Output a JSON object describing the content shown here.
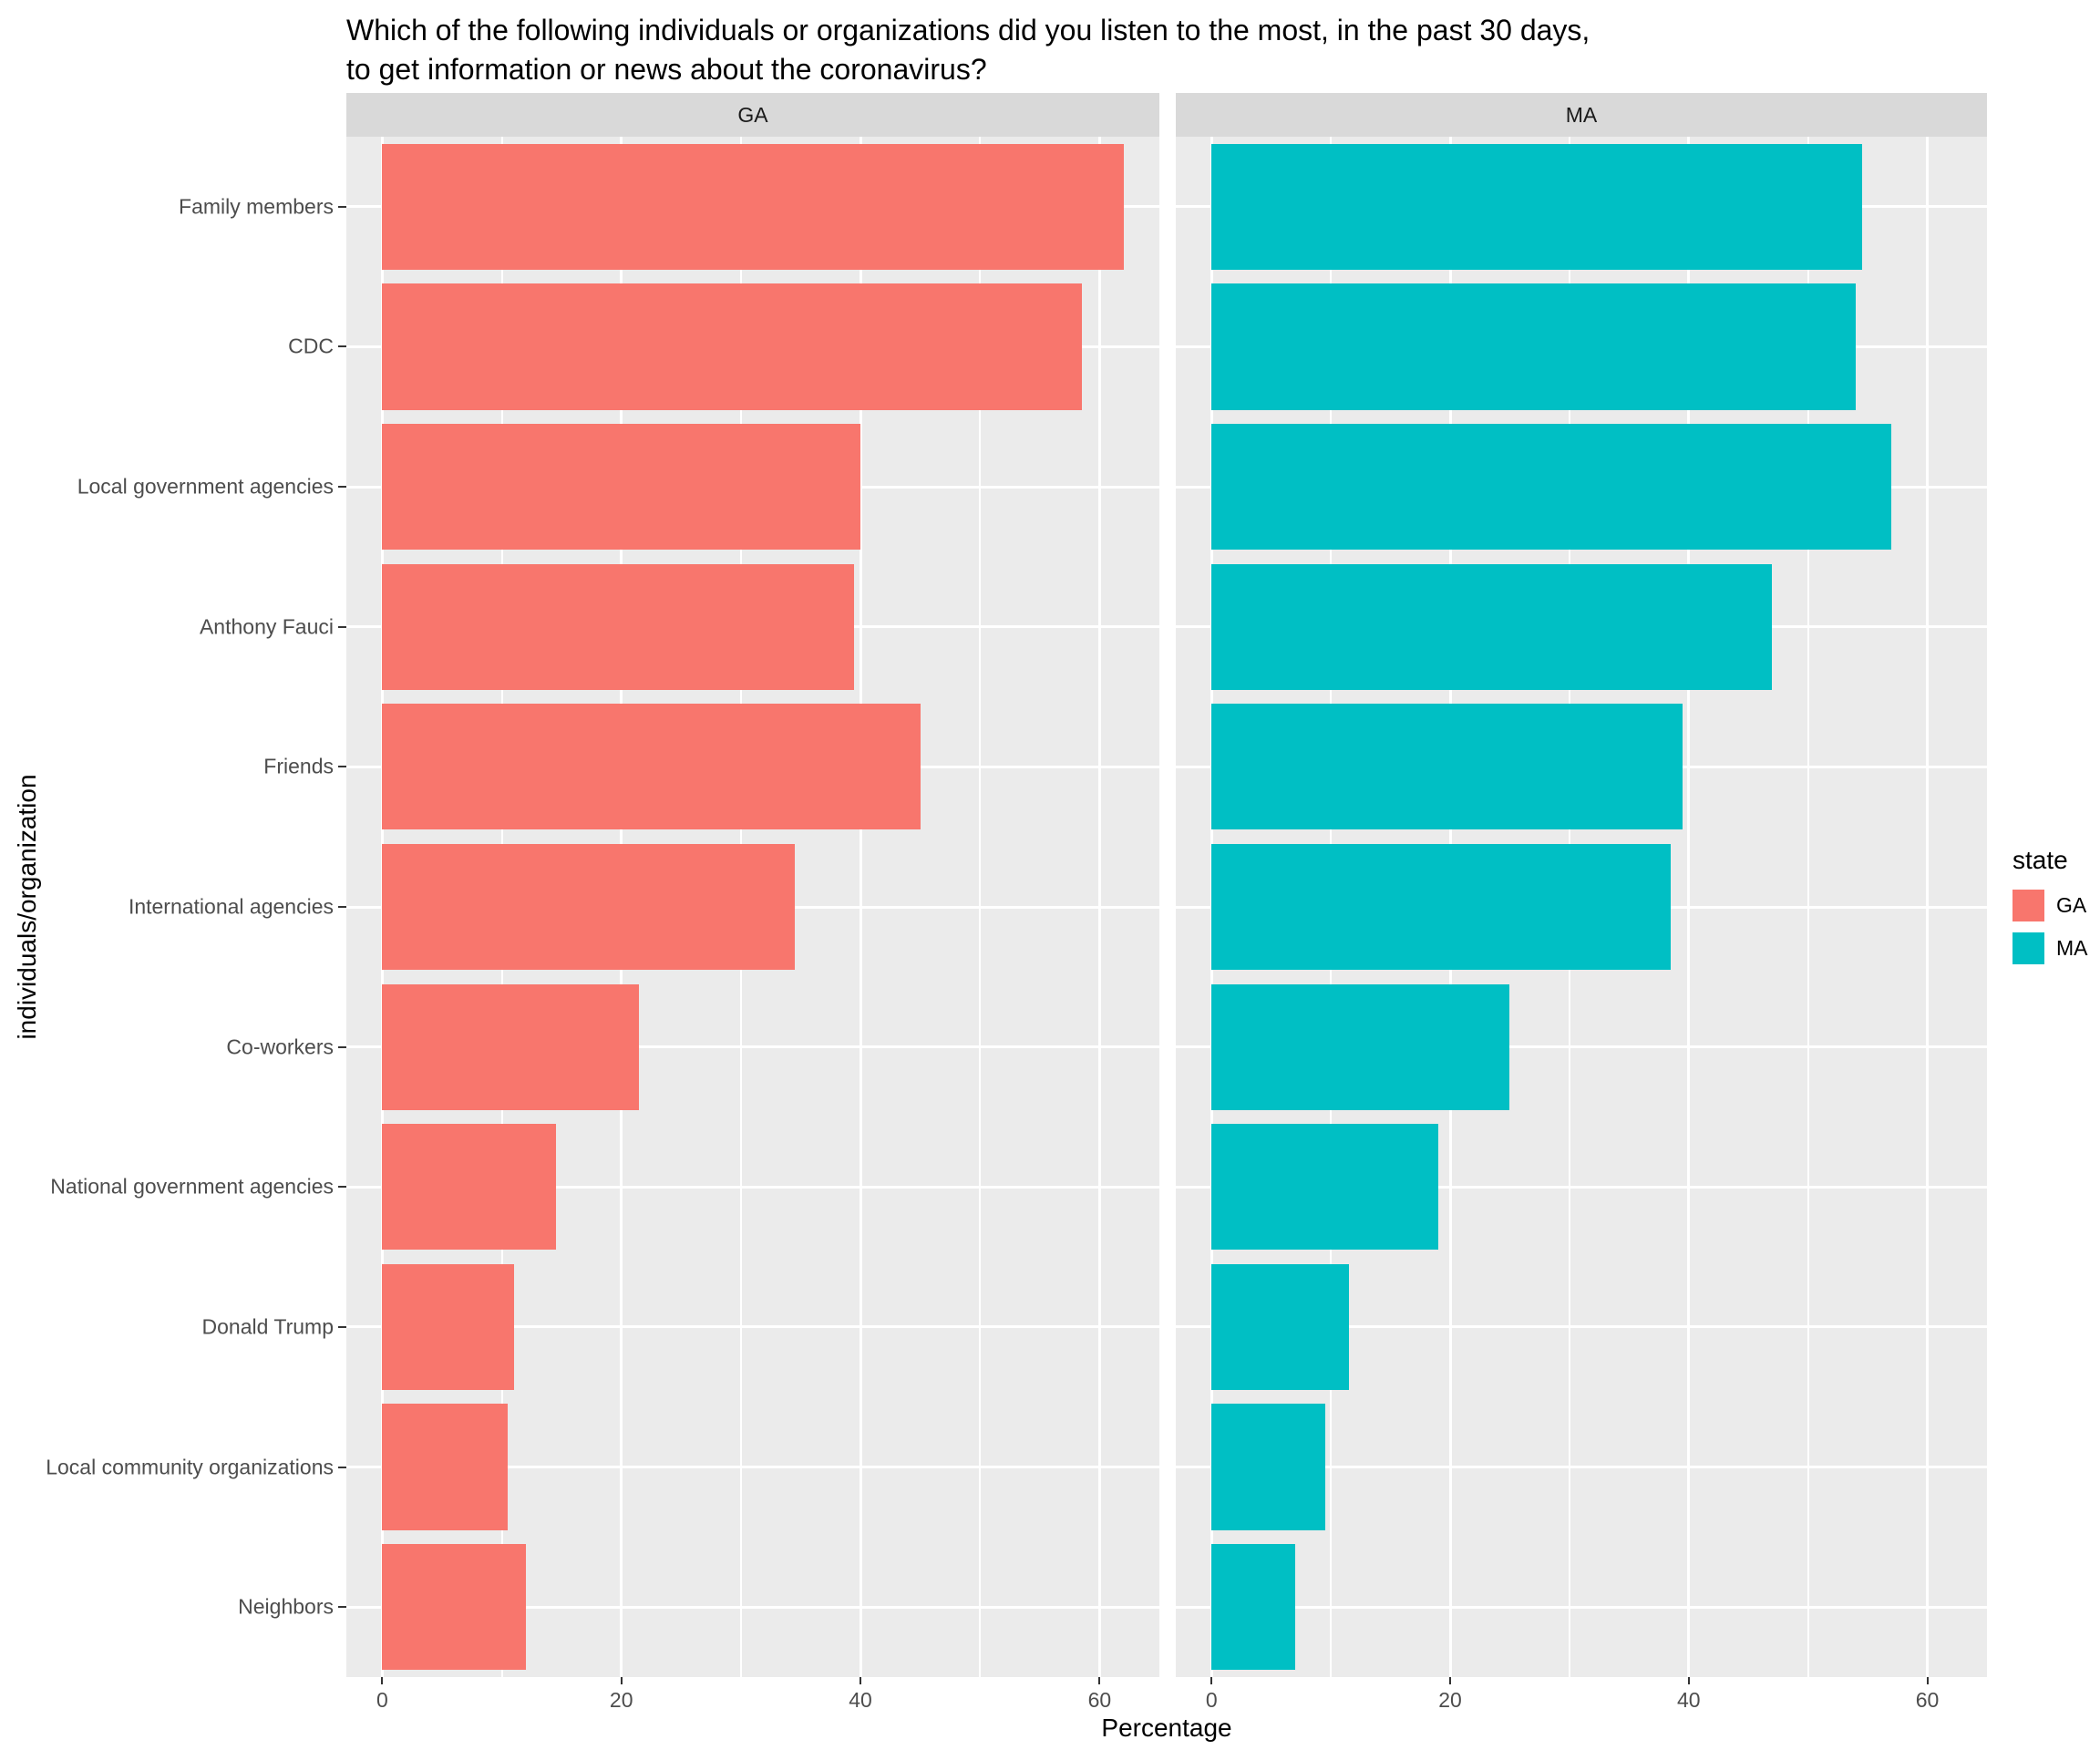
{
  "title": {
    "line1": "Which of the following individuals or organizations did you listen to the most, in the past 30 days,",
    "line2": "to get information or news about the coronavirus?"
  },
  "chart_data": {
    "type": "bar",
    "orientation": "horizontal",
    "facets": [
      "GA",
      "MA"
    ],
    "categories": [
      "Family members",
      "CDC",
      "Local government agencies",
      "Anthony Fauci",
      "Friends",
      "International agencies",
      "Co-workers",
      "National government agencies",
      "Donald Trump",
      "Local community organizations",
      "Neighbors"
    ],
    "series": [
      {
        "name": "GA",
        "color": "#F8766D",
        "values": [
          62,
          58.5,
          40,
          39.5,
          45,
          34.5,
          21.5,
          14.5,
          11,
          10.5,
          12
        ]
      },
      {
        "name": "MA",
        "color": "#00BFC4",
        "values": [
          54.5,
          54,
          57,
          47,
          39.5,
          38.5,
          25,
          19,
          11.5,
          9.5,
          7
        ]
      }
    ],
    "xlabel": "Percentage",
    "ylabel": "individuals/organization",
    "x_ticks": [
      0,
      20,
      40,
      60
    ],
    "x_minor_ticks": [
      10,
      30,
      50
    ],
    "xlim": [
      -3,
      65
    ],
    "legend": {
      "title": "state",
      "entries": [
        "GA",
        "MA"
      ]
    },
    "colors": {
      "panel_bg": "#EBEBEB",
      "strip_bg": "#D9D9D9",
      "grid": "#FFFFFF",
      "axis_text": "#4D4D4D"
    }
  }
}
